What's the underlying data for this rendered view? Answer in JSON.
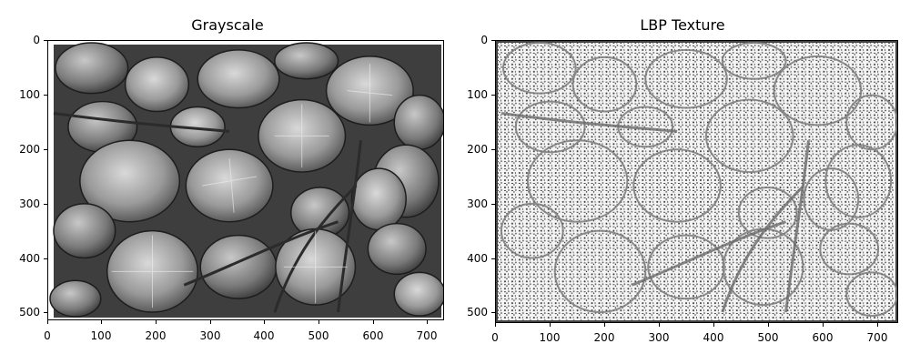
{
  "panels": {
    "left": {
      "title": "Grayscale",
      "x_ticks": [
        "0",
        "100",
        "200",
        "300",
        "400",
        "500",
        "600",
        "700"
      ],
      "y_ticks": [
        "0",
        "100",
        "200",
        "300",
        "400",
        "500"
      ]
    },
    "right": {
      "title": "LBP Texture",
      "x_ticks": [
        "0",
        "100",
        "200",
        "300",
        "400",
        "500",
        "600",
        "700"
      ],
      "y_ticks": [
        "0",
        "100",
        "200",
        "300",
        "400",
        "500"
      ]
    }
  },
  "colors": {
    "grayscale_bg": "#5a5a5a",
    "lbp_bg": "#f2f2f2"
  }
}
